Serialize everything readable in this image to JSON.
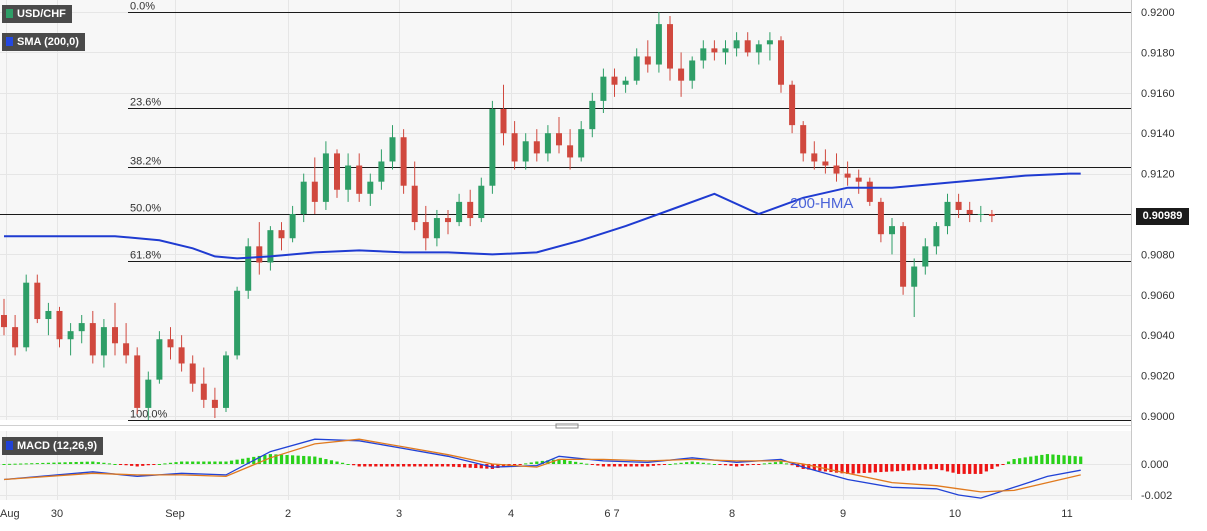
{
  "instrument": "USD/CHF",
  "overlay_indicator": "SMA (200,0)",
  "oscillator": "MACD (12,26,9)",
  "last_price": "0.90989",
  "hma_label": "200-HMA",
  "colors": {
    "up_candle": "#2e9e67",
    "down_candle": "#d0483e",
    "hma": "#1f3bd1",
    "macd_line": "#2142d6",
    "signal_line": "#e07a1f",
    "hist_positive": "#29d11a",
    "hist_negative": "#ee1414",
    "grid": "#e6e6e6",
    "panel_bg": "#f7f7f7"
  },
  "chart_data": [
    {
      "type": "candlestick",
      "title": "USD/CHF",
      "ylim": [
        0.8998,
        0.92
      ],
      "y_ticks": [
        "0.9200",
        "0.9180",
        "0.9160",
        "0.9140",
        "0.9120",
        "0.9100",
        "0.9080",
        "0.9060",
        "0.9040",
        "0.9020",
        "0.9000"
      ],
      "x_ticks": [
        "Aug",
        "30",
        "Sep",
        "2",
        "3",
        "4",
        "6 7",
        "8",
        "9",
        "10",
        "11"
      ],
      "grid": true,
      "fibonacci_levels": [
        {
          "label": "0.0%",
          "value": 0.92
        },
        {
          "label": "23.6%",
          "value": 0.91525
        },
        {
          "label": "38.2%",
          "value": 0.91235
        },
        {
          "label": "50.0%",
          "value": 0.91
        },
        {
          "label": "61.8%",
          "value": 0.90765
        },
        {
          "label": "100.0%",
          "value": 0.8998
        }
      ],
      "hma_200": {
        "name": "200-HMA",
        "t": [
          0,
          5,
          10,
          14,
          17,
          19,
          21,
          24,
          28,
          32,
          36,
          40,
          44,
          48,
          52,
          56,
          60,
          64,
          68,
          72,
          76,
          80,
          84,
          88,
          92,
          96,
          97
        ],
        "values": [
          0.9089,
          0.9089,
          0.9089,
          0.9087,
          0.9083,
          0.9079,
          0.9078,
          0.9079,
          0.9081,
          0.9082,
          0.9081,
          0.9081,
          0.908,
          0.9081,
          0.9087,
          0.9094,
          0.9102,
          0.911,
          0.91,
          0.9108,
          0.9113,
          0.9113,
          0.9115,
          0.9117,
          0.9119,
          0.912,
          0.912
        ]
      },
      "candles": [
        [
          0.905,
          0.9058,
          0.904,
          0.9044
        ],
        [
          0.9044,
          0.905,
          0.903,
          0.9034
        ],
        [
          0.9034,
          0.907,
          0.9032,
          0.9066
        ],
        [
          0.9066,
          0.907,
          0.9046,
          0.9048
        ],
        [
          0.9048,
          0.9056,
          0.904,
          0.9052
        ],
        [
          0.9052,
          0.9054,
          0.9034,
          0.9038
        ],
        [
          0.9038,
          0.9046,
          0.903,
          0.9042
        ],
        [
          0.9042,
          0.905,
          0.9036,
          0.9046
        ],
        [
          0.9046,
          0.9052,
          0.9026,
          0.903
        ],
        [
          0.903,
          0.9048,
          0.9024,
          0.9044
        ],
        [
          0.9044,
          0.9056,
          0.903,
          0.9036
        ],
        [
          0.9036,
          0.9046,
          0.9026,
          0.903
        ],
        [
          0.903,
          0.9034,
          0.9001,
          0.9004
        ],
        [
          0.9004,
          0.9022,
          0.8998,
          0.9018
        ],
        [
          0.9018,
          0.9042,
          0.9016,
          0.9038
        ],
        [
          0.9038,
          0.9044,
          0.9028,
          0.9034
        ],
        [
          0.9034,
          0.904,
          0.9022,
          0.9026
        ],
        [
          0.9026,
          0.903,
          0.9012,
          0.9016
        ],
        [
          0.9016,
          0.9024,
          0.9004,
          0.9008
        ],
        [
          0.9008,
          0.9014,
          0.8999,
          0.9004
        ],
        [
          0.9004,
          0.9032,
          0.9002,
          0.903
        ],
        [
          0.903,
          0.9064,
          0.9028,
          0.9062
        ],
        [
          0.9062,
          0.9088,
          0.9058,
          0.9084
        ],
        [
          0.9084,
          0.9096,
          0.907,
          0.9076
        ],
        [
          0.9076,
          0.9094,
          0.9072,
          0.9092
        ],
        [
          0.9092,
          0.9096,
          0.9082,
          0.9088
        ],
        [
          0.9088,
          0.9104,
          0.9086,
          0.91
        ],
        [
          0.91,
          0.912,
          0.9096,
          0.9116
        ],
        [
          0.9116,
          0.9128,
          0.91,
          0.9106
        ],
        [
          0.9106,
          0.9136,
          0.9102,
          0.913
        ],
        [
          0.913,
          0.9132,
          0.9108,
          0.9112
        ],
        [
          0.9112,
          0.913,
          0.9106,
          0.9124
        ],
        [
          0.9124,
          0.913,
          0.9106,
          0.911
        ],
        [
          0.911,
          0.912,
          0.9104,
          0.9116
        ],
        [
          0.9116,
          0.9132,
          0.9112,
          0.9126
        ],
        [
          0.9126,
          0.9144,
          0.9122,
          0.9138
        ],
        [
          0.9138,
          0.9142,
          0.911,
          0.9114
        ],
        [
          0.9114,
          0.9126,
          0.9092,
          0.9096
        ],
        [
          0.9096,
          0.9104,
          0.9082,
          0.9088
        ],
        [
          0.9088,
          0.9102,
          0.9084,
          0.9098
        ],
        [
          0.9098,
          0.9102,
          0.909,
          0.9096
        ],
        [
          0.9096,
          0.911,
          0.9094,
          0.9106
        ],
        [
          0.9106,
          0.9112,
          0.9094,
          0.9098
        ],
        [
          0.9098,
          0.9118,
          0.9096,
          0.9114
        ],
        [
          0.9114,
          0.9156,
          0.911,
          0.9152
        ],
        [
          0.9152,
          0.9164,
          0.9134,
          0.914
        ],
        [
          0.914,
          0.9146,
          0.9122,
          0.9126
        ],
        [
          0.9126,
          0.914,
          0.9122,
          0.9136
        ],
        [
          0.9136,
          0.9142,
          0.9126,
          0.913
        ],
        [
          0.913,
          0.9144,
          0.9126,
          0.914
        ],
        [
          0.914,
          0.9148,
          0.913,
          0.9134
        ],
        [
          0.9134,
          0.9142,
          0.9122,
          0.9128
        ],
        [
          0.9128,
          0.9146,
          0.9126,
          0.9142
        ],
        [
          0.9142,
          0.916,
          0.9138,
          0.9156
        ],
        [
          0.9156,
          0.9172,
          0.915,
          0.9168
        ],
        [
          0.9168,
          0.9172,
          0.9158,
          0.9164
        ],
        [
          0.9164,
          0.9168,
          0.916,
          0.9166
        ],
        [
          0.9166,
          0.9182,
          0.9164,
          0.9178
        ],
        [
          0.9178,
          0.9186,
          0.917,
          0.9174
        ],
        [
          0.9174,
          0.92,
          0.917,
          0.9194
        ],
        [
          0.9194,
          0.9198,
          0.9166,
          0.9172
        ],
        [
          0.9172,
          0.918,
          0.9158,
          0.9166
        ],
        [
          0.9166,
          0.9178,
          0.9162,
          0.9176
        ],
        [
          0.9176,
          0.9186,
          0.9172,
          0.9182
        ],
        [
          0.9182,
          0.9186,
          0.9176,
          0.918
        ],
        [
          0.918,
          0.9186,
          0.9174,
          0.9182
        ],
        [
          0.9182,
          0.919,
          0.9178,
          0.9186
        ],
        [
          0.9186,
          0.919,
          0.9178,
          0.918
        ],
        [
          0.918,
          0.9186,
          0.9174,
          0.9184
        ],
        [
          0.9184,
          0.919,
          0.9176,
          0.9186
        ],
        [
          0.9186,
          0.9188,
          0.916,
          0.9164
        ],
        [
          0.9164,
          0.9166,
          0.914,
          0.9144
        ],
        [
          0.9144,
          0.9146,
          0.9126,
          0.913
        ],
        [
          0.913,
          0.9136,
          0.9122,
          0.9126
        ],
        [
          0.9126,
          0.9132,
          0.912,
          0.9124
        ],
        [
          0.9124,
          0.913,
          0.9116,
          0.912
        ],
        [
          0.912,
          0.9126,
          0.9114,
          0.9118
        ],
        [
          0.9118,
          0.9122,
          0.911,
          0.9116
        ],
        [
          0.9116,
          0.9118,
          0.9104,
          0.9106
        ],
        [
          0.9106,
          0.9108,
          0.9086,
          0.909
        ],
        [
          0.909,
          0.9098,
          0.908,
          0.9094
        ],
        [
          0.9094,
          0.9096,
          0.906,
          0.9064
        ],
        [
          0.9064,
          0.9078,
          0.9049,
          0.9074
        ],
        [
          0.9074,
          0.9088,
          0.907,
          0.9084
        ],
        [
          0.9084,
          0.9096,
          0.908,
          0.9094
        ],
        [
          0.9094,
          0.911,
          0.909,
          0.9106
        ],
        [
          0.9106,
          0.911,
          0.9098,
          0.9102
        ],
        [
          0.9102,
          0.9106,
          0.9096,
          0.91
        ],
        [
          0.91,
          0.9104,
          0.9096,
          0.91
        ],
        [
          0.91,
          0.9102,
          0.9096,
          0.9099
        ]
      ]
    },
    {
      "type": "macd",
      "title": "MACD (12,26,9)",
      "ylim": [
        -0.0025,
        0.0021
      ],
      "y_ticks": [
        "0.000",
        "-0.002"
      ],
      "macd_line": {
        "t": [
          0,
          8,
          12,
          16,
          20,
          24,
          28,
          32,
          36,
          40,
          44,
          48,
          50,
          54,
          58,
          62,
          66,
          70,
          72,
          76,
          80,
          84,
          86,
          88,
          91,
          94,
          97
        ],
        "values": [
          -0.001,
          -0.0005,
          -0.0008,
          -0.0006,
          -0.0007,
          0.0008,
          0.0016,
          0.0015,
          0.001,
          0.0005,
          -0.0002,
          -0.0001,
          0.0005,
          0.0002,
          0.0001,
          0.0004,
          0.0001,
          0.0003,
          -0.0002,
          -0.001,
          -0.0015,
          -0.0016,
          -0.002,
          -0.0022,
          -0.0015,
          -0.0008,
          -0.0004
        ]
      },
      "signal_line": {
        "t": [
          0,
          8,
          12,
          16,
          20,
          24,
          28,
          32,
          36,
          40,
          44,
          48,
          50,
          54,
          58,
          62,
          66,
          70,
          72,
          76,
          80,
          84,
          86,
          88,
          91,
          94,
          97
        ],
        "values": [
          -0.001,
          -0.0006,
          -0.0007,
          -0.0007,
          -0.0008,
          0.0004,
          0.0013,
          0.0016,
          0.0011,
          0.0006,
          0.0,
          -0.0002,
          0.0003,
          0.0003,
          0.0002,
          0.0003,
          0.0002,
          0.0002,
          0.0,
          -0.0006,
          -0.0012,
          -0.0014,
          -0.0016,
          -0.0018,
          -0.0017,
          -0.0012,
          -0.0007
        ]
      }
    }
  ]
}
